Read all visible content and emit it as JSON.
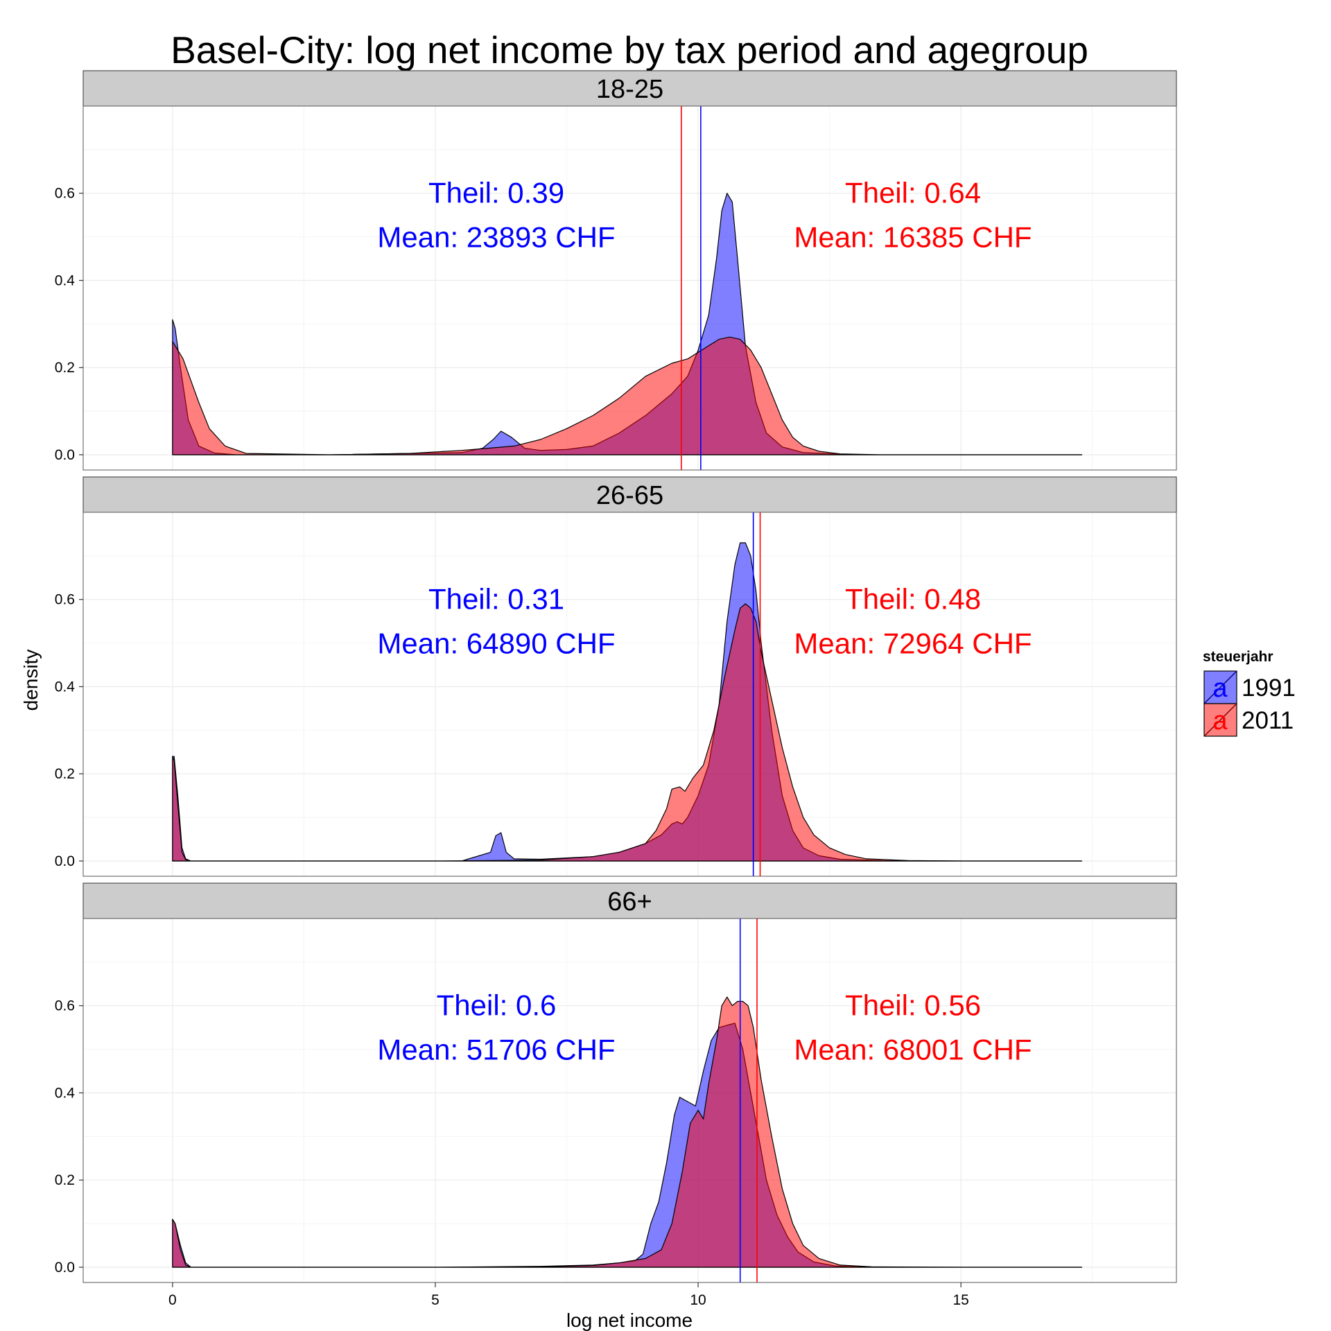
{
  "chart_data": {
    "type": "area",
    "title": "Basel-City: log net income by tax period and agegroup",
    "xlabel": "log net income",
    "ylabel": "density",
    "xlim": [
      -1.7,
      19.1
    ],
    "ylim": [
      -0.035,
      0.8
    ],
    "x_ticks": [
      0,
      5,
      10,
      15
    ],
    "y_ticks": [
      "0.0",
      "0.2",
      "0.4",
      "0.6"
    ],
    "y_tick_values": [
      0,
      0.2,
      0.4,
      0.6
    ],
    "grid": true,
    "legend": {
      "title": "steuerjahr",
      "position": "right",
      "key_glyph": "a",
      "entries": [
        {
          "label": "1991",
          "color": "#0000FF"
        },
        {
          "label": "2011",
          "color": "#FF0000"
        }
      ]
    },
    "colors": {
      "y1991": "#0000FF",
      "y2011": "#FF0000",
      "panel_bg": "#FFFFFF",
      "strip_bg": "#CCCCCC",
      "grid": "#EBEBEB"
    },
    "panels": [
      {
        "label": "18-25",
        "annotations": {
          "y1991": {
            "theil": "Theil: 0.39",
            "mean": "Mean: 23893 CHF"
          },
          "y2011": {
            "theil": "Theil: 0.64",
            "mean": "Mean: 16385 CHF"
          }
        },
        "vlines": {
          "y1991": 10.05,
          "y2011": 9.68
        },
        "series": [
          {
            "name": "1991",
            "color": "#0000FF",
            "x": [
              0.0,
              0.05,
              0.15,
              0.3,
              0.5,
              0.8,
              1.2,
              3,
              5.5,
              5.9,
              6.1,
              6.25,
              6.45,
              6.7,
              7,
              7.5,
              8,
              8.5,
              9,
              9.5,
              9.8,
              10,
              10.2,
              10.35,
              10.45,
              10.55,
              10.65,
              10.75,
              10.9,
              11.1,
              11.3,
              11.6,
              12,
              13,
              15,
              17.3
            ],
            "y": [
              0.31,
              0.29,
              0.2,
              0.08,
              0.02,
              0.004,
              0.0,
              0.0,
              0.005,
              0.015,
              0.035,
              0.054,
              0.04,
              0.015,
              0.01,
              0.012,
              0.02,
              0.05,
              0.09,
              0.14,
              0.18,
              0.24,
              0.32,
              0.45,
              0.56,
              0.6,
              0.58,
              0.45,
              0.25,
              0.12,
              0.05,
              0.018,
              0.005,
              0.0,
              0.0,
              0.0
            ]
          },
          {
            "name": "2011",
            "color": "#FF0000",
            "x": [
              0.0,
              0.05,
              0.2,
              0.35,
              0.5,
              0.7,
              1.0,
              1.4,
              3,
              4.5,
              5.5,
              6,
              6.5,
              7,
              7.5,
              8,
              8.5,
              9,
              9.5,
              9.8,
              10,
              10.2,
              10.4,
              10.6,
              10.8,
              11,
              11.2,
              11.4,
              11.6,
              11.8,
              12,
              12.3,
              12.7,
              13.5,
              15,
              17.3
            ],
            "y": [
              0.26,
              0.25,
              0.22,
              0.17,
              0.12,
              0.06,
              0.02,
              0.003,
              0.0,
              0.003,
              0.01,
              0.015,
              0.02,
              0.035,
              0.06,
              0.09,
              0.13,
              0.18,
              0.21,
              0.22,
              0.235,
              0.25,
              0.265,
              0.27,
              0.265,
              0.24,
              0.2,
              0.14,
              0.08,
              0.04,
              0.02,
              0.008,
              0.002,
              0.0,
              0.0,
              0.0
            ]
          }
        ]
      },
      {
        "label": "26-65",
        "annotations": {
          "y1991": {
            "theil": "Theil: 0.31",
            "mean": "Mean: 64890 CHF"
          },
          "y2011": {
            "theil": "Theil: 0.48",
            "mean": "Mean: 72964 CHF"
          }
        },
        "vlines": {
          "y1991": 11.05,
          "y2011": 11.18
        },
        "series": [
          {
            "name": "1991",
            "color": "#0000FF",
            "x": [
              0.0,
              0.03,
              0.1,
              0.18,
              0.25,
              0.35,
              1,
              5.5,
              6.05,
              6.15,
              6.25,
              6.35,
              6.5,
              7,
              8,
              8.5,
              9,
              9.3,
              9.5,
              9.6,
              9.7,
              9.8,
              10,
              10.2,
              10.4,
              10.55,
              10.7,
              10.8,
              10.9,
              11,
              11.1,
              11.2,
              11.4,
              11.6,
              11.8,
              12,
              12.3,
              12.7,
              13.5,
              15,
              17.3
            ],
            "y": [
              0.24,
              0.24,
              0.15,
              0.03,
              0.005,
              0.0,
              0.0,
              0.0,
              0.02,
              0.058,
              0.065,
              0.02,
              0.005,
              0.004,
              0.01,
              0.02,
              0.04,
              0.06,
              0.085,
              0.09,
              0.085,
              0.1,
              0.15,
              0.22,
              0.36,
              0.55,
              0.68,
              0.73,
              0.73,
              0.7,
              0.62,
              0.5,
              0.3,
              0.15,
              0.07,
              0.03,
              0.012,
              0.004,
              0.001,
              0.0,
              0.0
            ]
          },
          {
            "name": "2011",
            "color": "#FF0000",
            "x": [
              0.0,
              0.03,
              0.1,
              0.18,
              0.25,
              0.35,
              1,
              5,
              7,
              8,
              8.5,
              9,
              9.2,
              9.4,
              9.5,
              9.65,
              9.75,
              9.9,
              10.1,
              10.3,
              10.5,
              10.7,
              10.8,
              10.9,
              11,
              11.1,
              11.2,
              11.4,
              11.6,
              11.8,
              12,
              12.2,
              12.5,
              12.8,
              13.2,
              14,
              15,
              17.3
            ],
            "y": [
              0.24,
              0.23,
              0.13,
              0.02,
              0.003,
              0.0,
              0.0,
              0.0,
              0.002,
              0.01,
              0.02,
              0.04,
              0.07,
              0.12,
              0.165,
              0.17,
              0.16,
              0.19,
              0.22,
              0.3,
              0.42,
              0.53,
              0.58,
              0.59,
              0.58,
              0.55,
              0.48,
              0.37,
              0.26,
              0.17,
              0.1,
              0.06,
              0.03,
              0.015,
              0.005,
              0.001,
              0.0,
              0.0
            ]
          }
        ]
      },
      {
        "label": "66+",
        "annotations": {
          "y1991": {
            "theil": "Theil: 0.6",
            "mean": "Mean: 51706 CHF"
          },
          "y2011": {
            "theil": "Theil: 0.56",
            "mean": "Mean: 68001 CHF"
          }
        },
        "vlines": {
          "y1991": 10.8,
          "y2011": 11.12
        },
        "series": [
          {
            "name": "1991",
            "color": "#0000FF",
            "x": [
              0.0,
              0.05,
              0.15,
              0.25,
              0.35,
              1,
              5,
              7,
              8,
              8.5,
              8.8,
              8.95,
              9.1,
              9.25,
              9.4,
              9.55,
              9.65,
              9.8,
              9.95,
              10.1,
              10.25,
              10.4,
              10.55,
              10.7,
              10.85,
              11,
              11.15,
              11.3,
              11.5,
              11.7,
              11.9,
              12.2,
              12.6,
              13.2,
              15,
              17.3
            ],
            "y": [
              0.11,
              0.1,
              0.05,
              0.01,
              0.0,
              0.0,
              0.0,
              0.002,
              0.005,
              0.01,
              0.015,
              0.03,
              0.1,
              0.15,
              0.24,
              0.35,
              0.39,
              0.38,
              0.37,
              0.45,
              0.52,
              0.55,
              0.555,
              0.56,
              0.5,
              0.4,
              0.3,
              0.2,
              0.12,
              0.07,
              0.035,
              0.012,
              0.003,
              0.0,
              0.0,
              0.0
            ]
          },
          {
            "name": "2011",
            "color": "#FF0000",
            "x": [
              0.0,
              0.05,
              0.15,
              0.25,
              0.35,
              1,
              5,
              7,
              8,
              8.5,
              9,
              9.3,
              9.5,
              9.7,
              9.85,
              10,
              10.1,
              10.2,
              10.35,
              10.45,
              10.55,
              10.65,
              10.75,
              10.85,
              10.95,
              11.05,
              11.2,
              11.4,
              11.6,
              11.8,
              12,
              12.3,
              12.7,
              13.3,
              15,
              17.3
            ],
            "y": [
              0.11,
              0.1,
              0.04,
              0.005,
              0.0,
              0.0,
              0.0,
              0.001,
              0.004,
              0.01,
              0.02,
              0.04,
              0.1,
              0.22,
              0.33,
              0.36,
              0.34,
              0.42,
              0.52,
              0.6,
              0.62,
              0.6,
              0.61,
              0.61,
              0.6,
              0.55,
              0.43,
              0.3,
              0.18,
              0.1,
              0.05,
              0.02,
              0.005,
              0.001,
              0.0,
              0.0
            ]
          }
        ]
      }
    ]
  }
}
